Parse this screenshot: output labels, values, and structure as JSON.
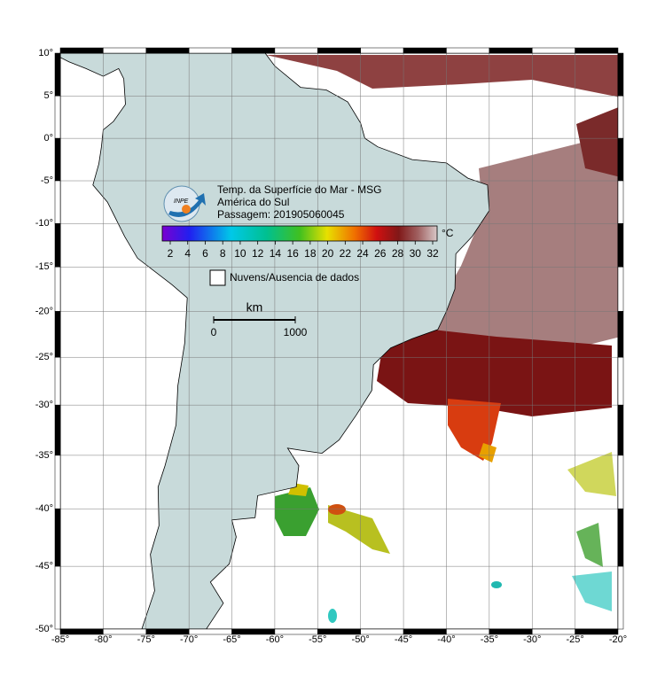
{
  "title_lines": [
    "Temp. da Superfície do Mar - MSG",
    "América do Sul",
    "Passagem: 201905060045"
  ],
  "colorbar": {
    "ticks": [
      2,
      4,
      6,
      8,
      10,
      12,
      14,
      16,
      18,
      20,
      22,
      24,
      26,
      28,
      30,
      32
    ],
    "unit": "°C"
  },
  "legend": {
    "label": "Nuvens/Ausencia de dados"
  },
  "scale_bar": {
    "unit": "km",
    "labels": [
      0,
      1000
    ]
  },
  "map": {
    "lon_ticks": [
      {
        "value": -85,
        "label": "-85°"
      },
      {
        "value": -80,
        "label": "-80°"
      },
      {
        "value": -75,
        "label": "-75°"
      },
      {
        "value": -70,
        "label": "-70°"
      },
      {
        "value": -65,
        "label": "-65°"
      },
      {
        "value": -60,
        "label": "-60°"
      },
      {
        "value": -55,
        "label": "-55°"
      },
      {
        "value": -50,
        "label": "-50°"
      },
      {
        "value": -45,
        "label": "-45°"
      },
      {
        "value": -40,
        "label": "-40°"
      },
      {
        "value": -35,
        "label": "-35°"
      },
      {
        "value": -30,
        "label": "-30°"
      },
      {
        "value": -25,
        "label": "-25°"
      },
      {
        "value": -20,
        "label": "-20°"
      }
    ],
    "lat_ticks": [
      {
        "value": 10,
        "label": "10°"
      },
      {
        "value": 5,
        "label": "5°"
      },
      {
        "value": 0,
        "label": "0°"
      },
      {
        "value": -5,
        "label": "-5°"
      },
      {
        "value": -10,
        "label": "-10°"
      },
      {
        "value": -15,
        "label": "-15°"
      },
      {
        "value": -20,
        "label": "-20°"
      },
      {
        "value": -25,
        "label": "-25°"
      },
      {
        "value": -30,
        "label": "-30°"
      },
      {
        "value": -35,
        "label": "-35°"
      },
      {
        "value": -40,
        "label": "-40°"
      },
      {
        "value": -45,
        "label": "-45°"
      },
      {
        "value": -50,
        "label": "-50°"
      }
    ]
  }
}
